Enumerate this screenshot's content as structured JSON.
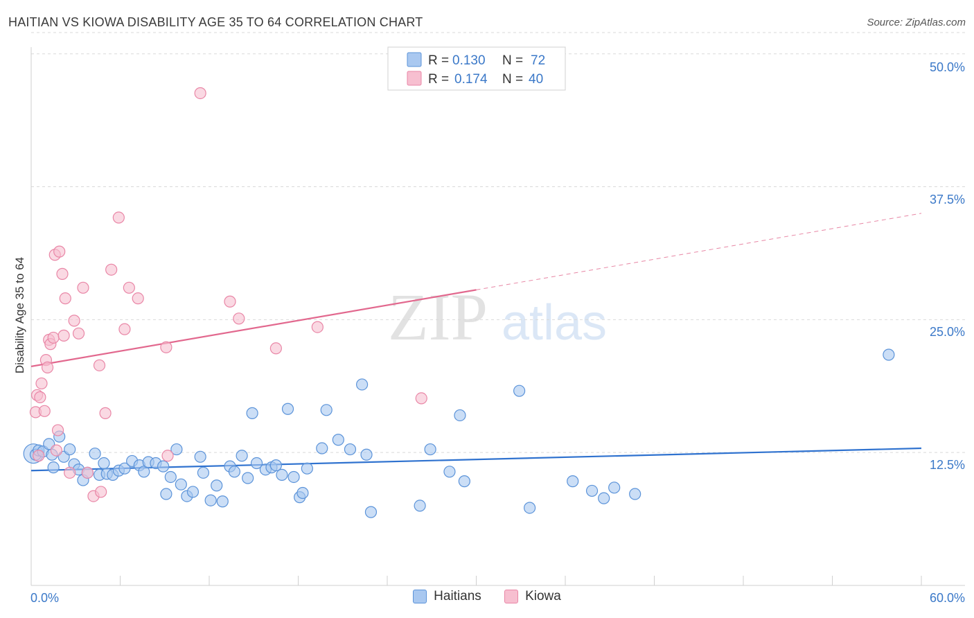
{
  "title": "HAITIAN VS KIOWA DISABILITY AGE 35 TO 64 CORRELATION CHART",
  "source": "Source: ZipAtlas.com",
  "colors": {
    "haitians_fill": "#a9c8f0",
    "haitians_stroke": "#5b93d9",
    "haitians_line": "#2f72cf",
    "kiowa_fill": "#f7bfd0",
    "kiowa_stroke": "#e986a6",
    "kiowa_line": "#e2688e",
    "axis_label": "#3a78c8",
    "grid": "#d9d9d9"
  },
  "chart_data": {
    "type": "scatter",
    "title": "HAITIAN VS KIOWA DISABILITY AGE 35 TO 64 CORRELATION CHART",
    "xlabel": "",
    "ylabel": "Disability Age 35 to 64",
    "xlim": [
      0,
      60
    ],
    "ylim": [
      0,
      52
    ],
    "x_tick_labels": [
      "0.0%",
      "60.0%"
    ],
    "y_ticks": [
      12.5,
      25.0,
      37.5,
      50.0
    ],
    "y_tick_labels": [
      "12.5%",
      "25.0%",
      "37.5%",
      "50.0%"
    ],
    "grid": true,
    "watermark": {
      "zip": "ZIP",
      "atlas": "atlas"
    },
    "legend": {
      "r_label": "R =",
      "n_label": "N =",
      "entries": [
        {
          "r": "0.130",
          "n": "72"
        },
        {
          "r": "0.174",
          "n": "40"
        }
      ]
    },
    "series": [
      {
        "name": "Haitians",
        "r": 0.13,
        "n": 72,
        "trend": {
          "x0": 0,
          "y0": 10.8,
          "x1": 60,
          "y1": 12.9,
          "dash_from": null
        },
        "points": [
          [
            0.3,
            12.3
          ],
          [
            0.5,
            12.7
          ],
          [
            0.8,
            12.6
          ],
          [
            1.2,
            13.3
          ],
          [
            1.4,
            12.3
          ],
          [
            1.5,
            11.1
          ],
          [
            1.9,
            14.0
          ],
          [
            2.2,
            12.1
          ],
          [
            2.6,
            12.8
          ],
          [
            2.9,
            11.4
          ],
          [
            3.2,
            10.9
          ],
          [
            3.5,
            9.9
          ],
          [
            3.8,
            10.6
          ],
          [
            4.3,
            12.4
          ],
          [
            4.6,
            10.4
          ],
          [
            4.9,
            11.5
          ],
          [
            5.1,
            10.5
          ],
          [
            5.5,
            10.4
          ],
          [
            5.9,
            10.8
          ],
          [
            6.3,
            11.0
          ],
          [
            6.8,
            11.7
          ],
          [
            7.3,
            11.3
          ],
          [
            7.6,
            10.7
          ],
          [
            7.9,
            11.6
          ],
          [
            8.4,
            11.5
          ],
          [
            8.9,
            11.2
          ],
          [
            9.1,
            8.6
          ],
          [
            9.4,
            10.2
          ],
          [
            9.8,
            12.8
          ],
          [
            10.1,
            9.5
          ],
          [
            10.5,
            8.4
          ],
          [
            10.9,
            8.8
          ],
          [
            11.4,
            12.1
          ],
          [
            11.6,
            10.6
          ],
          [
            12.1,
            8.0
          ],
          [
            12.5,
            9.4
          ],
          [
            12.9,
            7.9
          ],
          [
            13.4,
            11.2
          ],
          [
            13.7,
            10.7
          ],
          [
            14.2,
            12.2
          ],
          [
            14.6,
            10.1
          ],
          [
            14.9,
            16.2
          ],
          [
            15.2,
            11.5
          ],
          [
            15.8,
            10.9
          ],
          [
            16.2,
            11.1
          ],
          [
            16.5,
            11.3
          ],
          [
            16.9,
            10.4
          ],
          [
            17.3,
            16.6
          ],
          [
            17.7,
            10.2
          ],
          [
            18.1,
            8.3
          ],
          [
            18.3,
            8.7
          ],
          [
            18.6,
            11.0
          ],
          [
            19.6,
            12.9
          ],
          [
            19.9,
            16.5
          ],
          [
            20.7,
            13.7
          ],
          [
            21.5,
            12.8
          ],
          [
            22.3,
            18.9
          ],
          [
            22.6,
            12.3
          ],
          [
            22.9,
            6.9
          ],
          [
            26.2,
            7.5
          ],
          [
            26.9,
            12.8
          ],
          [
            28.2,
            10.7
          ],
          [
            28.9,
            16.0
          ],
          [
            29.2,
            9.8
          ],
          [
            32.9,
            18.3
          ],
          [
            33.6,
            7.3
          ],
          [
            36.5,
            9.8
          ],
          [
            37.8,
            8.9
          ],
          [
            38.6,
            8.2
          ],
          [
            39.3,
            9.2
          ],
          [
            40.7,
            8.6
          ],
          [
            57.8,
            21.7
          ]
        ],
        "big_point": [
          0.15,
          12.4
        ]
      },
      {
        "name": "Kiowa",
        "r": 0.174,
        "n": 40,
        "trend": {
          "x0": 0,
          "y0": 20.6,
          "x1": 60,
          "y1": 35.0,
          "dash_from": 30
        },
        "points": [
          [
            0.3,
            16.3
          ],
          [
            0.4,
            17.9
          ],
          [
            0.5,
            12.2
          ],
          [
            0.6,
            17.7
          ],
          [
            0.7,
            19.0
          ],
          [
            0.9,
            16.4
          ],
          [
            1.0,
            21.2
          ],
          [
            1.1,
            20.5
          ],
          [
            1.2,
            23.1
          ],
          [
            1.3,
            22.7
          ],
          [
            1.5,
            23.3
          ],
          [
            1.6,
            31.1
          ],
          [
            1.7,
            12.7
          ],
          [
            1.8,
            14.6
          ],
          [
            1.9,
            31.4
          ],
          [
            2.1,
            29.3
          ],
          [
            2.2,
            23.5
          ],
          [
            2.3,
            27.0
          ],
          [
            2.6,
            10.6
          ],
          [
            2.9,
            24.9
          ],
          [
            3.2,
            23.7
          ],
          [
            3.5,
            28.0
          ],
          [
            3.8,
            10.6
          ],
          [
            4.2,
            8.4
          ],
          [
            4.6,
            20.7
          ],
          [
            4.7,
            8.8
          ],
          [
            5.0,
            16.2
          ],
          [
            5.4,
            29.7
          ],
          [
            5.9,
            34.6
          ],
          [
            6.3,
            24.1
          ],
          [
            6.6,
            28.0
          ],
          [
            7.2,
            27.0
          ],
          [
            9.1,
            22.4
          ],
          [
            9.2,
            12.2
          ],
          [
            11.4,
            46.3
          ],
          [
            13.4,
            26.7
          ],
          [
            14.0,
            25.1
          ],
          [
            16.5,
            22.3
          ],
          [
            19.3,
            24.3
          ],
          [
            26.3,
            17.6
          ]
        ]
      }
    ]
  },
  "legend_bottom": [
    "Haitians",
    "Kiowa"
  ]
}
